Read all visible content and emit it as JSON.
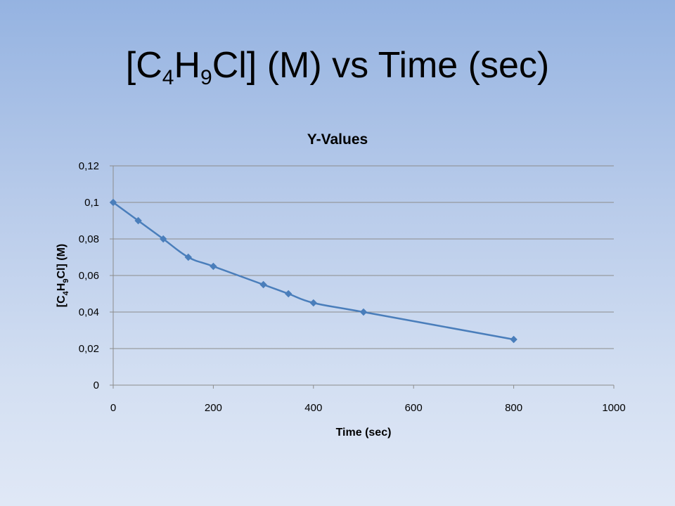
{
  "slide": {
    "title_parts": [
      {
        "text": "[C",
        "sub": false
      },
      {
        "text": "4",
        "sub": true
      },
      {
        "text": "H",
        "sub": false
      },
      {
        "text": "9",
        "sub": true
      },
      {
        "text": "Cl] (M) vs Time (sec)",
        "sub": false
      }
    ]
  },
  "chart_data": {
    "type": "scatter",
    "title": "Y-Values",
    "xlabel": "Time (sec)",
    "ylabel_parts": [
      {
        "text": "[C",
        "sub": false
      },
      {
        "text": "4",
        "sub": true
      },
      {
        "text": "H",
        "sub": false
      },
      {
        "text": "9",
        "sub": true
      },
      {
        "text": "Cl] (M)",
        "sub": false
      }
    ],
    "xlim": [
      0,
      1000
    ],
    "ylim": [
      0,
      0.12
    ],
    "x_ticks": [
      0,
      200,
      400,
      600,
      800,
      1000
    ],
    "y_ticks": [
      0,
      0.02,
      0.04,
      0.06,
      0.08,
      0.1,
      0.12
    ],
    "x_tick_labels": [
      "0",
      "200",
      "400",
      "600",
      "800",
      "1000"
    ],
    "y_tick_labels": [
      "0",
      "0,02",
      "0,04",
      "0,06",
      "0,08",
      "0,1",
      "0,12"
    ],
    "grid": "horizontal",
    "legend": "none",
    "series": [
      {
        "color": "#4a7ebb",
        "marker": "diamond",
        "connect": "smooth-line",
        "x": [
          0,
          50,
          100,
          150,
          200,
          300,
          350,
          400,
          500,
          800
        ],
        "y": [
          0.1,
          0.09,
          0.08,
          0.07,
          0.065,
          0.055,
          0.05,
          0.045,
          0.04,
          0.025
        ]
      }
    ]
  }
}
